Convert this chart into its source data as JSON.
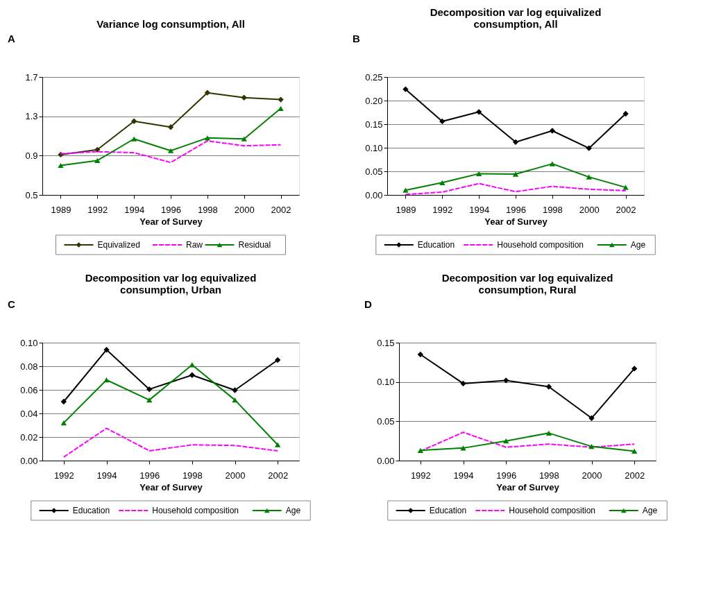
{
  "chart_data": [
    {
      "type": "line",
      "title": "Variance log consumption, All",
      "xlabel": "Year of Survey",
      "annotations": [
        "A"
      ],
      "categories": [
        "1989",
        "1992",
        "1994",
        "1996",
        "1998",
        "2000",
        "2002"
      ],
      "ylim": [
        0.5,
        1.7
      ],
      "yticks": [
        0.5,
        0.9,
        1.3,
        1.7
      ],
      "grid": "y",
      "legend": "bottom",
      "series": [
        {
          "name": "Equivalized",
          "color": "#333300",
          "marker": "diamond",
          "line_style": "solid",
          "values": [
            0.91,
            0.96,
            1.25,
            1.19,
            1.54,
            1.49,
            1.47
          ]
        },
        {
          "name": "Raw",
          "color": "#ff00ff",
          "marker": "none",
          "line_style": "dashed",
          "values": [
            0.92,
            0.94,
            0.93,
            0.83,
            1.05,
            1.0,
            1.01
          ]
        },
        {
          "name": "Residual",
          "color": "#008000",
          "marker": "triangle",
          "line_style": "solid",
          "values": [
            0.8,
            0.85,
            1.07,
            0.95,
            1.08,
            1.07,
            1.38
          ]
        }
      ]
    },
    {
      "type": "line",
      "title": "Decomposition var log equivalized consumption, All",
      "xlabel": "Year of Survey",
      "annotations": [
        "B"
      ],
      "categories": [
        "1989",
        "1992",
        "1994",
        "1996",
        "1998",
        "2000",
        "2002"
      ],
      "ylim": [
        0,
        0.25
      ],
      "yticks": [
        {
          "value": 0,
          "label": "0.00"
        },
        {
          "value": 0.05,
          "label": "0.05"
        },
        {
          "value": 0.1,
          "label": "0.10"
        },
        {
          "value": 0.15,
          "label": "0.15"
        },
        {
          "value": 0.2,
          "label": "0.20"
        },
        {
          "value": 0.25,
          "label": "0.25"
        }
      ],
      "grid": "y",
      "legend": "bottom",
      "series": [
        {
          "name": "Education",
          "color": "#000000",
          "marker": "diamond",
          "line_style": "solid",
          "values": [
            0.224,
            0.156,
            0.176,
            0.112,
            0.136,
            0.099,
            0.172
          ]
        },
        {
          "name": "Household composition",
          "color": "#ff00ff",
          "marker": "none",
          "line_style": "dashed",
          "values": [
            0.001,
            0.006,
            0.024,
            0.007,
            0.018,
            0.012,
            0.009
          ]
        },
        {
          "name": "Age",
          "color": "#008000",
          "marker": "triangle",
          "line_style": "solid",
          "values": [
            0.01,
            0.026,
            0.045,
            0.044,
            0.066,
            0.038,
            0.016
          ]
        }
      ]
    },
    {
      "type": "line",
      "title": "Decomposition var log equivalized consumption, Urban",
      "xlabel": "Year of Survey",
      "annotations": [
        "C"
      ],
      "categories": [
        "1992",
        "1994",
        "1996",
        "1998",
        "2000",
        "2002"
      ],
      "ylim": [
        0,
        0.1
      ],
      "yticks": [
        {
          "value": 0,
          "label": "0.00"
        },
        {
          "value": 0.02,
          "label": "0.02"
        },
        {
          "value": 0.04,
          "label": "0.04"
        },
        {
          "value": 0.06,
          "label": "0.06"
        },
        {
          "value": 0.08,
          "label": "0.08"
        },
        {
          "value": 0.1,
          "label": "0.10"
        }
      ],
      "grid": "y",
      "legend": "bottom",
      "series": [
        {
          "name": "Education",
          "color": "#000000",
          "marker": "diamond",
          "line_style": "solid",
          "values": [
            0.05,
            0.094,
            0.0605,
            0.0725,
            0.0597,
            0.0853
          ]
        },
        {
          "name": "Household composition",
          "color": "#ff00ff",
          "marker": "none",
          "line_style": "dashed",
          "values": [
            0.003,
            0.0274,
            0.0083,
            0.0134,
            0.0128,
            0.0083
          ]
        },
        {
          "name": "Age",
          "color": "#008000",
          "marker": "triangle",
          "line_style": "solid",
          "values": [
            0.032,
            0.0684,
            0.0514,
            0.0812,
            0.0514,
            0.0134
          ]
        }
      ]
    },
    {
      "type": "line",
      "title": "Decomposition var log equivalized consumption, Rural",
      "xlabel": "Year of Survey",
      "annotations": [
        "D"
      ],
      "categories": [
        "1992",
        "1994",
        "1996",
        "1998",
        "2000",
        "2002"
      ],
      "ylim": [
        0,
        0.15
      ],
      "yticks": [
        {
          "value": 0,
          "label": "0.00"
        },
        {
          "value": 0.05,
          "label": "0.05"
        },
        {
          "value": 0.1,
          "label": "0.10"
        },
        {
          "value": 0.15,
          "label": "0.15"
        }
      ],
      "grid": "y",
      "legend": "bottom",
      "series": [
        {
          "name": "Education",
          "color": "#000000",
          "marker": "diamond",
          "line_style": "solid",
          "values": [
            0.135,
            0.098,
            0.102,
            0.094,
            0.054,
            0.117
          ]
        },
        {
          "name": "Household composition",
          "color": "#ff00ff",
          "marker": "none",
          "line_style": "dashed",
          "values": [
            0.012,
            0.036,
            0.017,
            0.021,
            0.017,
            0.021
          ]
        },
        {
          "name": "Age",
          "color": "#008000",
          "marker": "triangle",
          "line_style": "solid",
          "values": [
            0.013,
            0.016,
            0.025,
            0.035,
            0.018,
            0.012
          ]
        }
      ]
    }
  ]
}
